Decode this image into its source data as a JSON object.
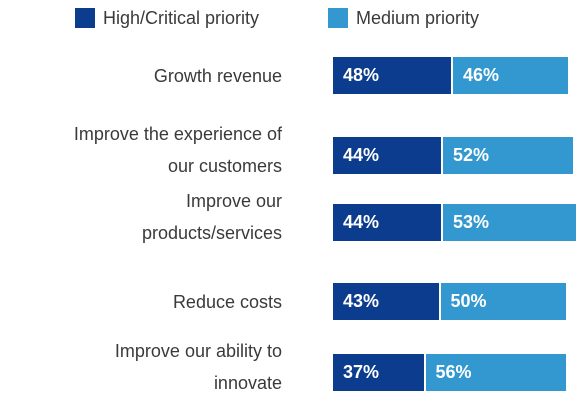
{
  "chart_data": {
    "type": "stacked-bar-horizontal",
    "categories": [
      "Growth revenue",
      "Improve the experience of\nour customers",
      "Improve our\nproducts/services",
      "Reduce costs",
      "Improve our ability to\ninnovate"
    ],
    "series": [
      {
        "name": "High/Critical priority",
        "color": "#0c3c8e",
        "values": [
          48,
          44,
          44,
          43,
          37
        ],
        "value_labels": [
          "48%",
          "44%",
          "44%",
          "43%",
          "37%"
        ]
      },
      {
        "name": "Medium priority",
        "color": "#3398d0",
        "values": [
          46,
          52,
          53,
          50,
          56
        ],
        "value_labels": [
          "46%",
          "52%",
          "53%",
          "50%",
          "56%"
        ]
      }
    ]
  }
}
